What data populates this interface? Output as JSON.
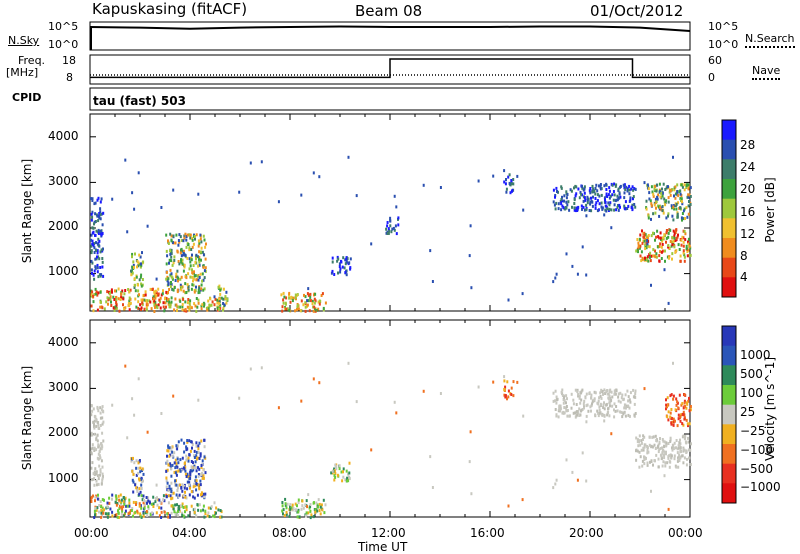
{
  "header": {
    "station": "Kapuskasing (fitACF)",
    "beam": "Beam 08",
    "date": "01/Oct/2012"
  },
  "noise_panel": {
    "left_label": "N.Sky",
    "left_ticks": [
      "10^5",
      "10^0"
    ],
    "right_ticks": [
      "10^5",
      "10^0"
    ],
    "right_label": "N.Search",
    "right_label_style": "dotted underline"
  },
  "freq_panel": {
    "left_label_line1": "Freq.",
    "left_label_line2": "[MHz]",
    "left_ticks": [
      "18",
      "8"
    ],
    "right_ticks": [
      "60",
      "0"
    ],
    "right_label": "Nave",
    "right_label_style": "dotted underline"
  },
  "cpid": {
    "label": "CPID",
    "text": "tau (fast) 503"
  },
  "x_axis": {
    "ticks": [
      "00:00",
      "04:00",
      "08:00",
      "12:00",
      "16:00",
      "20:00",
      "00:00"
    ],
    "title": "Time UT",
    "range_hours": [
      0,
      24
    ]
  },
  "power_panel": {
    "ylabel": "Slant Range [km]",
    "yticks": [
      "4000",
      "3000",
      "2000",
      "1000"
    ],
    "ylim": [
      180,
      4500
    ],
    "colorbar_title": "Power [dB]",
    "colorbar_ticks": [
      "28",
      "24",
      "20",
      "16",
      "12",
      "8",
      "4"
    ],
    "colorbar_colors": [
      "#1a1aff",
      "#2a4fb0",
      "#3d7d6a",
      "#3da23d",
      "#9ec83c",
      "#f0c030",
      "#f08c1e",
      "#e84818",
      "#e01010"
    ]
  },
  "velocity_panel": {
    "ylabel": "Slant Range [km]",
    "yticks": [
      "4000",
      "3000",
      "2000",
      "1000"
    ],
    "ylim": [
      180,
      4500
    ],
    "colorbar_title": "Velocity [m s^-1]",
    "colorbar_ticks": [
      "1000",
      "500",
      "100",
      "25",
      "−25",
      "−100",
      "−500",
      "−1000"
    ],
    "colorbar_colors": [
      "#2838b8",
      "#2a55b8",
      "#2e8a5a",
      "#6ccc3a",
      "#c8c8c0",
      "#f0b020",
      "#f07020",
      "#e83020",
      "#e01010"
    ]
  },
  "chart_data": {
    "type": "heatmap",
    "x_unit": "hours UT",
    "noise_sky": [
      {
        "x": 0,
        "y": 0.82
      },
      {
        "x": 2,
        "y": 0.8
      },
      {
        "x": 4,
        "y": 0.76
      },
      {
        "x": 6,
        "y": 0.8
      },
      {
        "x": 8,
        "y": 0.82
      },
      {
        "x": 10,
        "y": 0.84
      },
      {
        "x": 12,
        "y": 0.82
      },
      {
        "x": 14,
        "y": 0.82
      },
      {
        "x": 16,
        "y": 0.82
      },
      {
        "x": 18,
        "y": 0.84
      },
      {
        "x": 20,
        "y": 0.84
      },
      {
        "x": 22,
        "y": 0.8
      },
      {
        "x": 24,
        "y": 0.68
      }
    ],
    "freq_mhz_steps": [
      {
        "from": 0,
        "to": 12,
        "value": 10
      },
      {
        "from": 12,
        "to": 21.7,
        "value": 18
      },
      {
        "from": 21.7,
        "to": 24,
        "value": 10
      }
    ],
    "power_blobs": [
      {
        "t0": 0.0,
        "t1": 3.2,
        "r0": 200,
        "r1": 700,
        "level": "hot"
      },
      {
        "t0": 3.2,
        "t1": 5.3,
        "r0": 200,
        "r1": 500,
        "level": "warm"
      },
      {
        "t0": 0.0,
        "t1": 0.5,
        "r0": 900,
        "r1": 2700,
        "level": "low"
      },
      {
        "t0": 1.6,
        "t1": 2.1,
        "r0": 700,
        "r1": 1500,
        "level": "mid"
      },
      {
        "t0": 3.0,
        "t1": 4.6,
        "r0": 600,
        "r1": 1900,
        "level": "mix"
      },
      {
        "t0": 5.1,
        "t1": 5.5,
        "r0": 300,
        "r1": 800,
        "level": "mid"
      },
      {
        "t0": 7.6,
        "t1": 9.4,
        "r0": 200,
        "r1": 600,
        "level": "warm"
      },
      {
        "t0": 9.6,
        "t1": 10.4,
        "r0": 1000,
        "r1": 1400,
        "level": "low"
      },
      {
        "t0": 11.8,
        "t1": 12.3,
        "r0": 1900,
        "r1": 2300,
        "level": "low"
      },
      {
        "t0": 16.5,
        "t1": 16.9,
        "r0": 2800,
        "r1": 3200,
        "level": "low"
      },
      {
        "t0": 18.5,
        "t1": 21.8,
        "r0": 2400,
        "r1": 3000,
        "level": "low"
      },
      {
        "t0": 21.8,
        "t1": 24.0,
        "r0": 1300,
        "r1": 2000,
        "level": "hot"
      },
      {
        "t0": 22.2,
        "t1": 24.0,
        "r0": 2200,
        "r1": 3000,
        "level": "mix"
      }
    ],
    "velocity_blobs": [
      {
        "t0": 0.0,
        "t1": 3.2,
        "r0": 200,
        "r1": 700,
        "level": "mixv"
      },
      {
        "t0": 3.2,
        "t1": 5.3,
        "r0": 200,
        "r1": 500,
        "level": "green"
      },
      {
        "t0": 0.0,
        "t1": 0.5,
        "r0": 900,
        "r1": 2700,
        "level": "grey"
      },
      {
        "t0": 1.6,
        "t1": 2.1,
        "r0": 700,
        "r1": 1500,
        "level": "blue"
      },
      {
        "t0": 3.0,
        "t1": 4.6,
        "r0": 600,
        "r1": 1900,
        "level": "blue"
      },
      {
        "t0": 7.6,
        "t1": 9.4,
        "r0": 200,
        "r1": 600,
        "level": "green"
      },
      {
        "t0": 9.6,
        "t1": 10.4,
        "r0": 1000,
        "r1": 1400,
        "level": "green"
      },
      {
        "t0": 16.5,
        "t1": 16.9,
        "r0": 2800,
        "r1": 3200,
        "level": "orange"
      },
      {
        "t0": 18.5,
        "t1": 21.8,
        "r0": 2400,
        "r1": 3000,
        "level": "grey"
      },
      {
        "t0": 21.8,
        "t1": 24.0,
        "r0": 1300,
        "r1": 2000,
        "level": "grey"
      },
      {
        "t0": 23.0,
        "t1": 24.0,
        "r0": 2200,
        "r1": 2900,
        "level": "orange"
      }
    ]
  }
}
